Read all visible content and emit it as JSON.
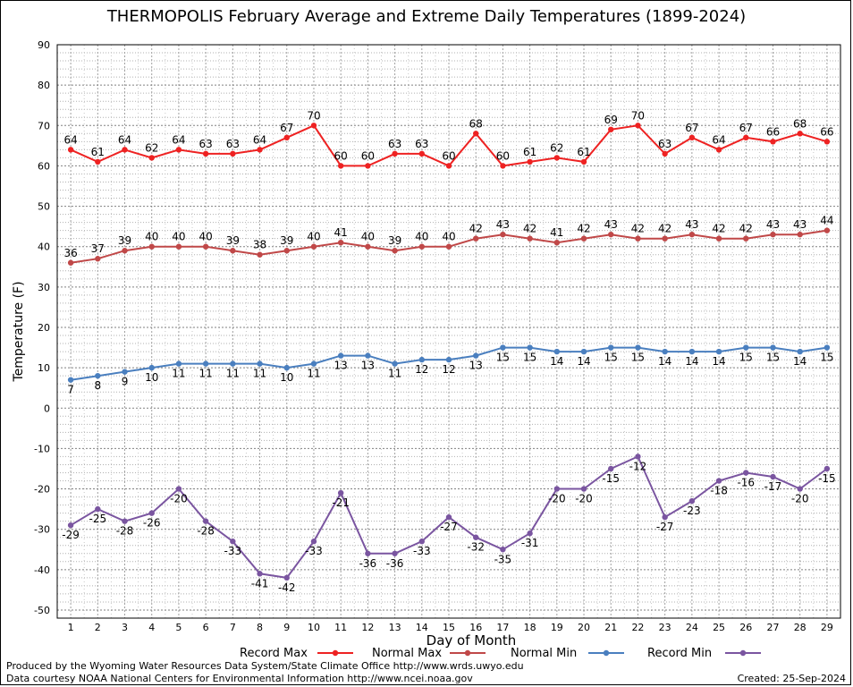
{
  "chart_data": {
    "type": "line",
    "title": "THERMOPOLIS February Average and Extreme Daily Temperatures (1899-2024)",
    "xlabel": "Day of Month",
    "ylabel": "Temperature (F)",
    "x": [
      1,
      2,
      3,
      4,
      5,
      6,
      7,
      8,
      9,
      10,
      11,
      12,
      13,
      14,
      15,
      16,
      17,
      18,
      19,
      20,
      21,
      22,
      23,
      24,
      25,
      26,
      27,
      28,
      29
    ],
    "ylim": [
      -52,
      90
    ],
    "yticks": [
      90,
      80,
      70,
      60,
      50,
      40,
      30,
      20,
      10,
      0,
      -10,
      -20,
      -30,
      -40,
      -50
    ],
    "grid": true,
    "legend_position": "bottom",
    "series": [
      {
        "name": "Record Max",
        "color": "#ee2222",
        "label_pos": "above",
        "values": [
          64,
          61,
          64,
          62,
          64,
          63,
          63,
          64,
          67,
          70,
          60,
          60,
          63,
          63,
          60,
          68,
          60,
          61,
          62,
          61,
          69,
          70,
          63,
          67,
          64,
          67,
          66,
          68,
          66
        ]
      },
      {
        "name": "Normal Max",
        "color": "#c04848",
        "label_pos": "above",
        "values": [
          36,
          37,
          39,
          40,
          40,
          40,
          39,
          38,
          39,
          40,
          41,
          40,
          39,
          40,
          40,
          42,
          43,
          42,
          41,
          42,
          43,
          42,
          42,
          43,
          42,
          42,
          43,
          43,
          44
        ]
      },
      {
        "name": "Normal Min",
        "color": "#4a7fbf",
        "label_pos": "below",
        "values": [
          7,
          8,
          9,
          10,
          11,
          11,
          11,
          11,
          10,
          11,
          13,
          13,
          11,
          12,
          12,
          13,
          15,
          15,
          14,
          14,
          15,
          15,
          14,
          14,
          14,
          15,
          15,
          14,
          15
        ]
      },
      {
        "name": "Record Min",
        "color": "#7a55a0",
        "label_pos": "below",
        "values": [
          -29,
          -25,
          -28,
          -26,
          -20,
          -28,
          -33,
          -41,
          -42,
          -33,
          -21,
          -36,
          -36,
          -33,
          -27,
          -32,
          -35,
          -31,
          -20,
          -20,
          -15,
          -12,
          -27,
          -23,
          -18,
          -16,
          -17,
          -20,
          -15
        ]
      }
    ]
  },
  "footer": {
    "producer": "Produced by the Wyoming Water Resources Data System/State Climate Office http://www.wrds.uwyo.edu",
    "courtesy": "Data courtesy NOAA National Centers for Environmental Information http://www.ncei.noaa.gov",
    "created": "Created:  25-Sep-2024"
  }
}
